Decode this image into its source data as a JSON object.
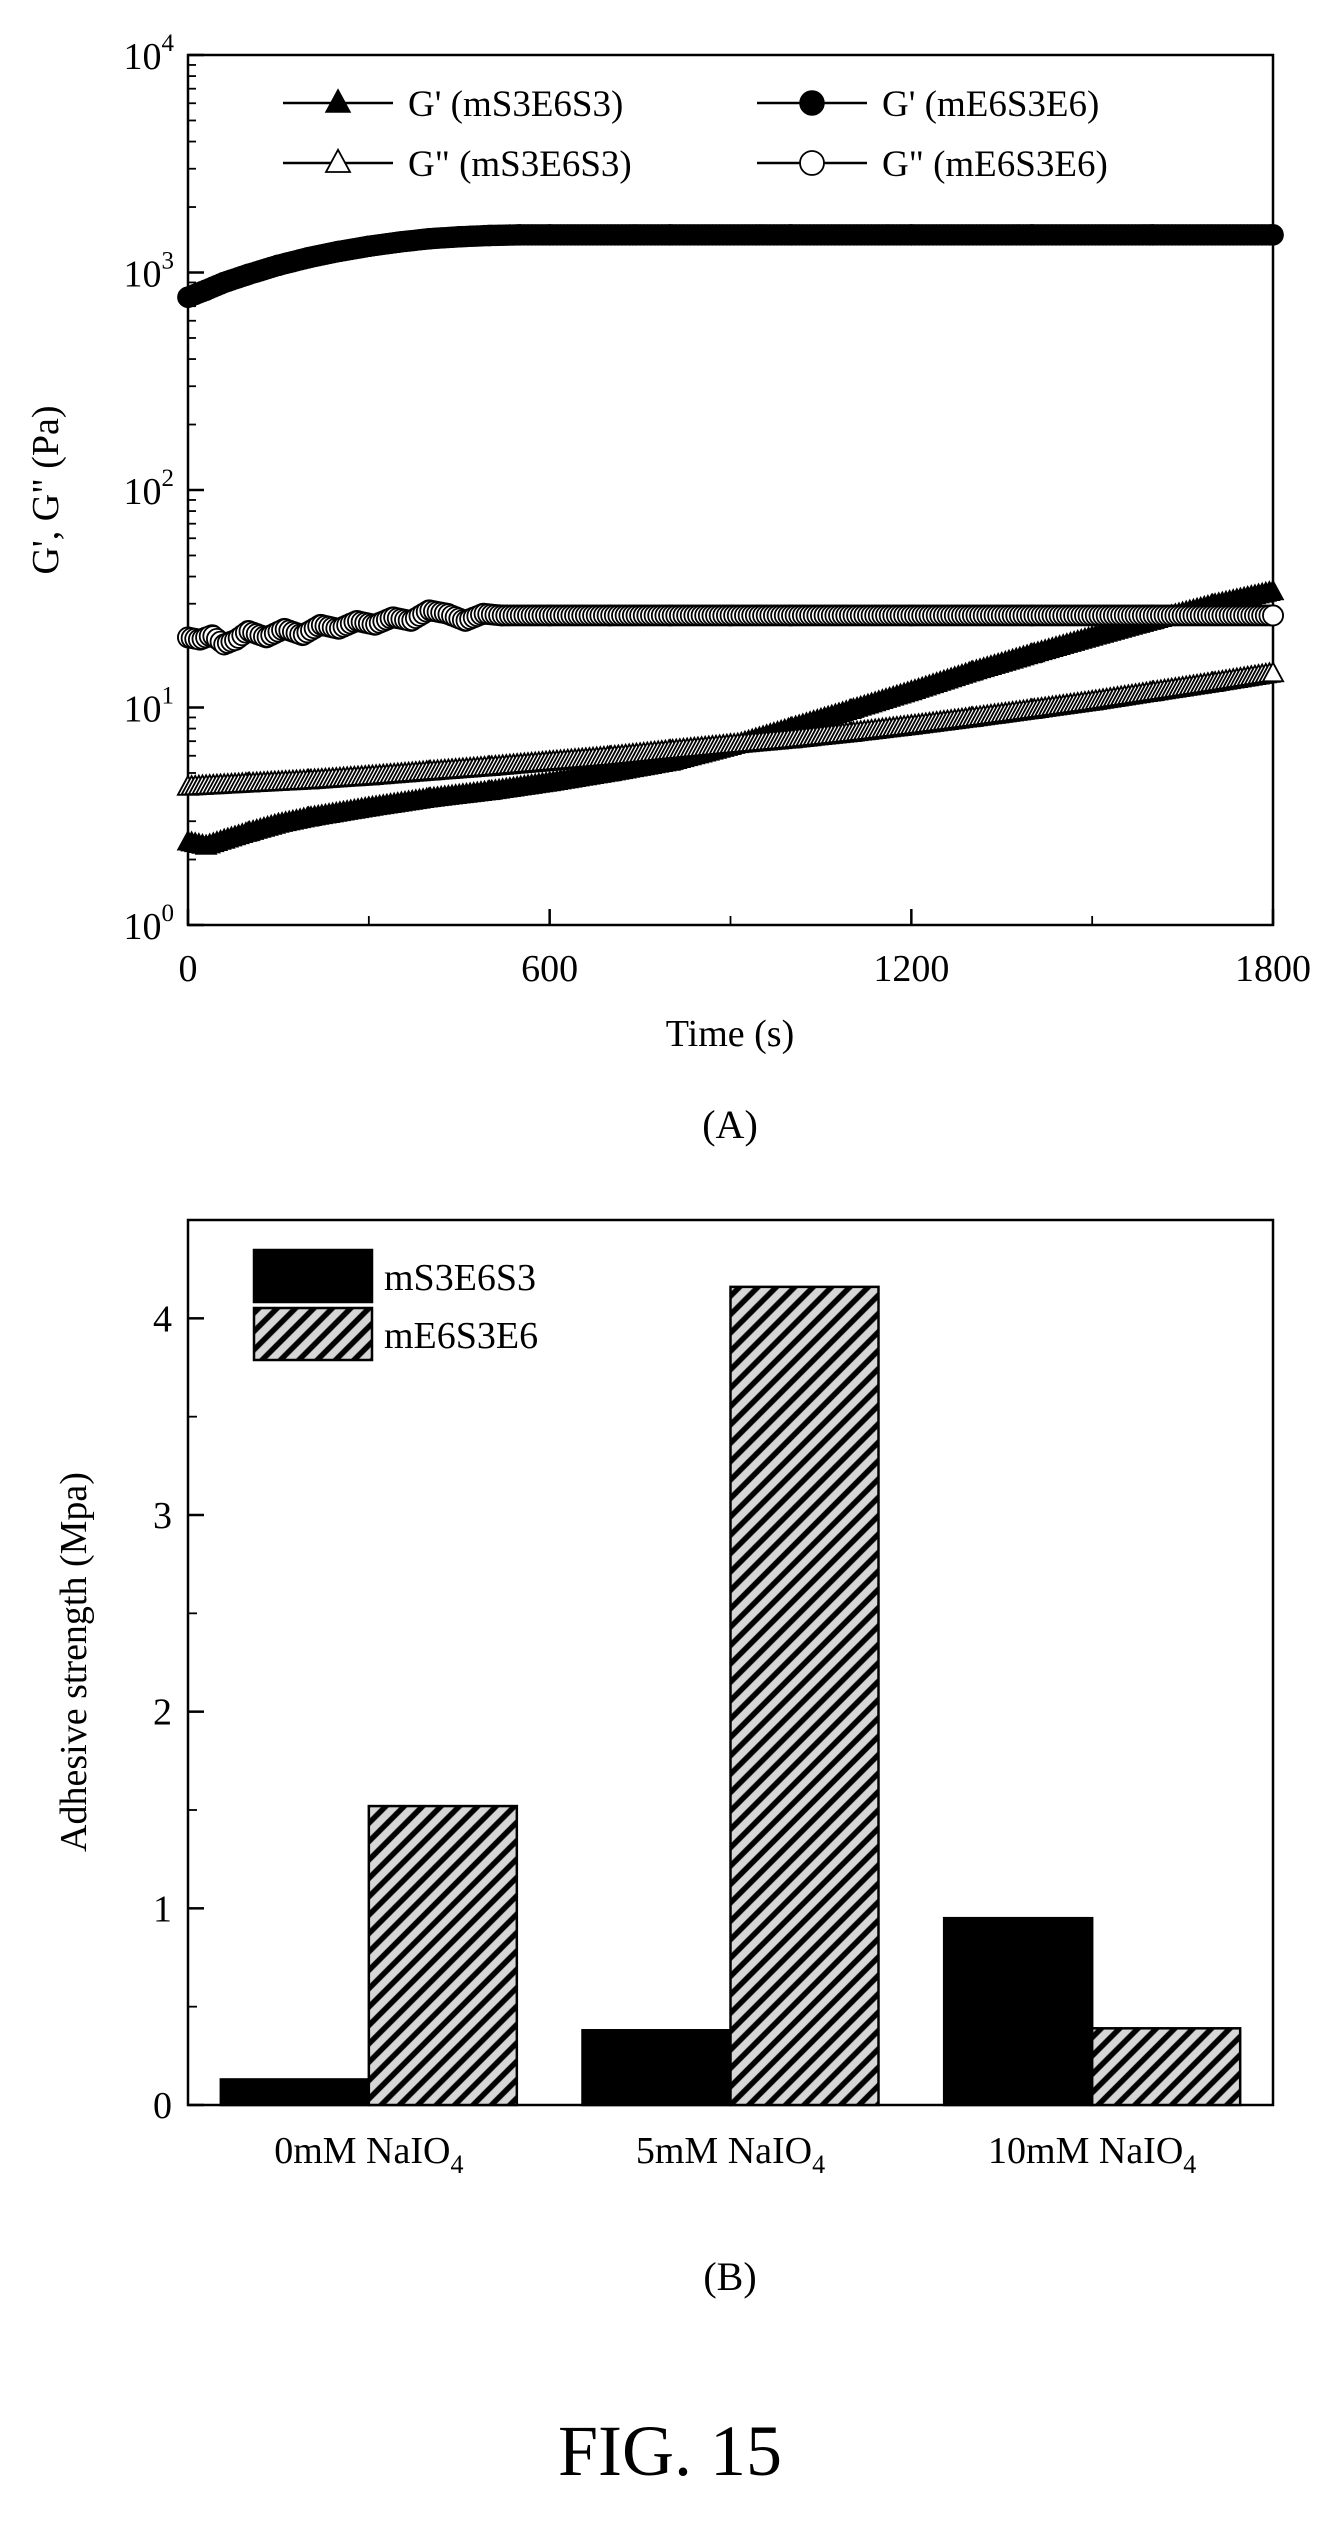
{
  "figure": {
    "caption": "FIG. 15"
  },
  "chart_data": [
    {
      "panel_label": "(A)",
      "type": "line",
      "xlabel": "Time (s)",
      "ylabel": "G', G\" (Pa)",
      "xlim": [
        0,
        1800
      ],
      "ylim": [
        1,
        10000
      ],
      "yscale": "log",
      "x_ticks": [
        {
          "value": 0,
          "label": "0"
        },
        {
          "value": 600,
          "label": "600"
        },
        {
          "value": 1200,
          "label": "1200"
        },
        {
          "value": 1800,
          "label": "1800"
        }
      ],
      "y_ticks": [
        {
          "value": 1,
          "base": "10",
          "exp": "0"
        },
        {
          "value": 10,
          "base": "10",
          "exp": "1"
        },
        {
          "value": 100,
          "base": "10",
          "exp": "2"
        },
        {
          "value": 1000,
          "base": "10",
          "exp": "3"
        },
        {
          "value": 10000,
          "base": "10",
          "exp": "4"
        }
      ],
      "legend_position": "top",
      "series": [
        {
          "name": "G' (mS3E6S3)",
          "marker": "filled-triangle",
          "x": [
            0,
            30,
            60,
            100,
            150,
            200,
            300,
            400,
            500,
            600,
            700,
            800,
            900,
            1000,
            1100,
            1200,
            1300,
            1400,
            1500,
            1600,
            1700,
            1800
          ],
          "y": [
            2.4,
            2.3,
            2.45,
            2.65,
            2.9,
            3.1,
            3.45,
            3.8,
            4.1,
            4.5,
            5.0,
            5.6,
            6.6,
            8.0,
            9.7,
            11.8,
            14.5,
            17.5,
            21.0,
            25.0,
            29.5,
            34.0
          ]
        },
        {
          "name": "G' (mE6S3E6)",
          "marker": "filled-circle",
          "x": [
            0,
            30,
            60,
            100,
            150,
            200,
            250,
            300,
            350,
            400,
            450,
            500,
            550,
            600,
            800,
            1000,
            1200,
            1400,
            1600,
            1800
          ],
          "y": [
            770,
            830,
            900,
            980,
            1080,
            1170,
            1250,
            1320,
            1380,
            1430,
            1460,
            1480,
            1490,
            1490,
            1490,
            1490,
            1490,
            1490,
            1490,
            1490
          ]
        },
        {
          "name": "G\" (mS3E6S3)",
          "marker": "open-triangle",
          "x": [
            0,
            100,
            200,
            300,
            400,
            500,
            600,
            700,
            800,
            900,
            1000,
            1100,
            1200,
            1300,
            1400,
            1500,
            1600,
            1700,
            1800
          ],
          "y": [
            4.3,
            4.45,
            4.6,
            4.8,
            5.05,
            5.3,
            5.6,
            5.9,
            6.3,
            6.7,
            7.1,
            7.6,
            8.2,
            8.9,
            9.7,
            10.6,
            11.7,
            12.9,
            14.3
          ]
        },
        {
          "name": "G\" (mE6S3E6)",
          "marker": "open-circle",
          "x": [
            0,
            20,
            40,
            60,
            80,
            100,
            130,
            160,
            190,
            220,
            250,
            280,
            310,
            340,
            370,
            400,
            430,
            460,
            490,
            520,
            600,
            700,
            800,
            900,
            1000,
            1200,
            1400,
            1600,
            1800
          ],
          "y": [
            21,
            20.5,
            21.5,
            19.5,
            20.5,
            22.5,
            21,
            23,
            21.5,
            24,
            23,
            25,
            24,
            26,
            25,
            28,
            27,
            25,
            27,
            26.5,
            26.5,
            26.5,
            26.5,
            26.5,
            26.5,
            26.5,
            26.5,
            26.5,
            26.5
          ]
        }
      ]
    },
    {
      "panel_label": "(B)",
      "type": "bar",
      "ylabel": "Adhesive strength (Mpa)",
      "ylim": [
        0,
        4.5
      ],
      "y_ticks": [
        "0",
        "1",
        "2",
        "3",
        "4"
      ],
      "categories": [
        {
          "main": "0mM NaIO",
          "sub": "4"
        },
        {
          "main": "5mM NaIO",
          "sub": "4"
        },
        {
          "main": "10mM NaIO",
          "sub": "4"
        }
      ],
      "legend_position": "top-left",
      "series": [
        {
          "name": "mS3E6S3",
          "fill": "solid-black",
          "values": [
            0.13,
            0.38,
            0.95
          ]
        },
        {
          "name": "mE6S3E6",
          "fill": "diagonal-hatch",
          "values": [
            1.52,
            4.16,
            0.39
          ]
        }
      ]
    }
  ]
}
